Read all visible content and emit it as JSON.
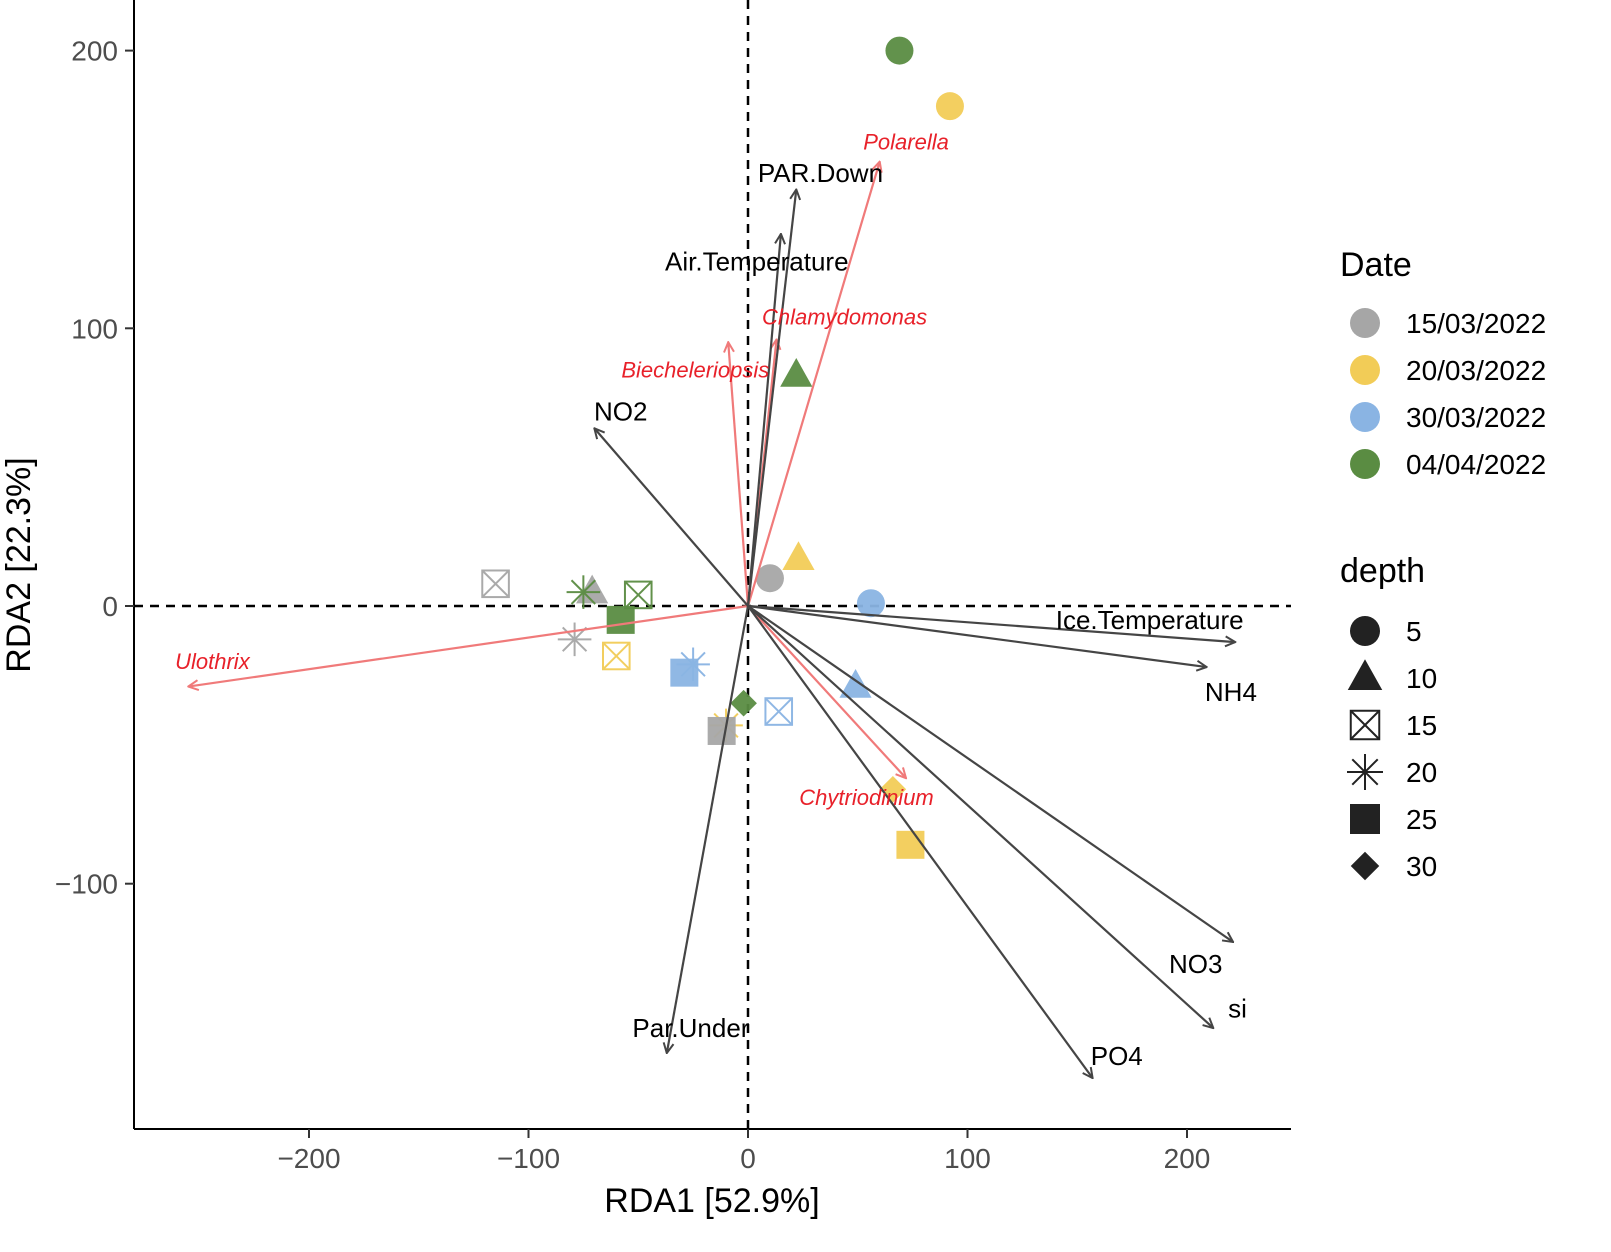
{
  "chart_data": {
    "type": "scatter",
    "title": "",
    "xlabel": "RDA1 [52.9%]",
    "ylabel": "RDA2 [22.3%]",
    "xlim": [
      -280,
      245
    ],
    "ylim": [
      -188,
      215
    ],
    "xticks": [
      -200,
      -100,
      0,
      100,
      200
    ],
    "yticks": [
      -100,
      0,
      100,
      200
    ],
    "tick_labels_x": [
      "−200",
      "−100",
      "0",
      "100",
      "200"
    ],
    "tick_labels_y": [
      "−100",
      "0",
      "100",
      "200"
    ],
    "grid": false,
    "colors": {
      "15/03/2022": "#a6a6a6",
      "20/03/2022": "#f2cc57",
      "30/03/2022": "#8ab4e3",
      "04/04/2022": "#5a8c42",
      "env_arrow": "#454545",
      "species_arrow": "#f07a7a",
      "species_text": "#e8212a"
    },
    "legend": {
      "placement": "right",
      "date_title": "Date",
      "dates": [
        "15/03/2022",
        "20/03/2022",
        "30/03/2022",
        "04/04/2022"
      ],
      "depth_title": "depth",
      "depths": [
        {
          "label": "5",
          "shape": "circle"
        },
        {
          "label": "10",
          "shape": "triangle"
        },
        {
          "label": "15",
          "shape": "boxcross"
        },
        {
          "label": "20",
          "shape": "star"
        },
        {
          "label": "25",
          "shape": "square"
        },
        {
          "label": "30",
          "shape": "diamond"
        }
      ]
    },
    "env_vectors": [
      {
        "name": "PAR.Down",
        "x": 22,
        "y": 150,
        "lx": 33,
        "ly": 156
      },
      {
        "name": "Air.Temperature",
        "x": 15,
        "y": 134,
        "lx": 4,
        "ly": 124
      },
      {
        "name": "NO2",
        "x": -70,
        "y": 64,
        "lx": -58,
        "ly": 70
      },
      {
        "name": "Ice.Temperature",
        "x": 222,
        "y": -13,
        "lx": 183,
        "ly": -5
      },
      {
        "name": "NH4",
        "x": 209,
        "y": -22,
        "lx": 220,
        "ly": -31
      },
      {
        "name": "NO3",
        "x": 221,
        "y": -121,
        "lx": 204,
        "ly": -129
      },
      {
        "name": "si",
        "x": 212,
        "y": -152,
        "lx": 223,
        "ly": -145
      },
      {
        "name": "PO4",
        "x": 157,
        "y": -170,
        "lx": 168,
        "ly": -162
      },
      {
        "name": "Par.Under",
        "x": -37,
        "y": -161,
        "lx": -26,
        "ly": -152
      }
    ],
    "species_vectors": [
      {
        "name": "Polarella",
        "x": 60,
        "y": 160,
        "lx": 72,
        "ly": 167
      },
      {
        "name": "Chlamydomonas",
        "x": 13,
        "y": 96,
        "lx": 44,
        "ly": 104
      },
      {
        "name": "Biecheleriopsis",
        "x": -9,
        "y": 95,
        "lx": -24,
        "ly": 85
      },
      {
        "name": "Ulothrix",
        "x": -255,
        "y": -29,
        "lx": -244,
        "ly": -20
      },
      {
        "name": "Chytriodinium",
        "x": 72,
        "y": -62,
        "lx": 54,
        "ly": -69
      }
    ],
    "points": [
      {
        "x": 69,
        "y": 200,
        "date": "04/04/2022",
        "depth": "5"
      },
      {
        "x": 92,
        "y": 180,
        "date": "20/03/2022",
        "depth": "5"
      },
      {
        "x": 10,
        "y": 10,
        "date": "15/03/2022",
        "depth": "5"
      },
      {
        "x": 56,
        "y": 1,
        "date": "30/03/2022",
        "depth": "5"
      },
      {
        "x": 22,
        "y": 83,
        "date": "04/04/2022",
        "depth": "10"
      },
      {
        "x": 23,
        "y": 17,
        "date": "20/03/2022",
        "depth": "10"
      },
      {
        "x": -71,
        "y": 5,
        "date": "15/03/2022",
        "depth": "10"
      },
      {
        "x": 49,
        "y": -29,
        "date": "30/03/2022",
        "depth": "10"
      },
      {
        "x": -115,
        "y": 8,
        "date": "15/03/2022",
        "depth": "15"
      },
      {
        "x": -50,
        "y": 4,
        "date": "04/04/2022",
        "depth": "15"
      },
      {
        "x": -60,
        "y": -18,
        "date": "20/03/2022",
        "depth": "15"
      },
      {
        "x": 14,
        "y": -38,
        "date": "30/03/2022",
        "depth": "15"
      },
      {
        "x": -75,
        "y": 5,
        "date": "04/04/2022",
        "depth": "20"
      },
      {
        "x": -79,
        "y": -12,
        "date": "15/03/2022",
        "depth": "20"
      },
      {
        "x": -25,
        "y": -21,
        "date": "30/03/2022",
        "depth": "20"
      },
      {
        "x": -10,
        "y": -43,
        "date": "20/03/2022",
        "depth": "20"
      },
      {
        "x": -58,
        "y": -5,
        "date": "04/04/2022",
        "depth": "25"
      },
      {
        "x": -29,
        "y": -24,
        "date": "30/03/2022",
        "depth": "25"
      },
      {
        "x": -12,
        "y": -45,
        "date": "15/03/2022",
        "depth": "25"
      },
      {
        "x": 74,
        "y": -86,
        "date": "20/03/2022",
        "depth": "25"
      },
      {
        "x": -2,
        "y": -35,
        "date": "04/04/2022",
        "depth": "30"
      },
      {
        "x": 66,
        "y": -66,
        "date": "20/03/2022",
        "depth": "30"
      }
    ]
  }
}
